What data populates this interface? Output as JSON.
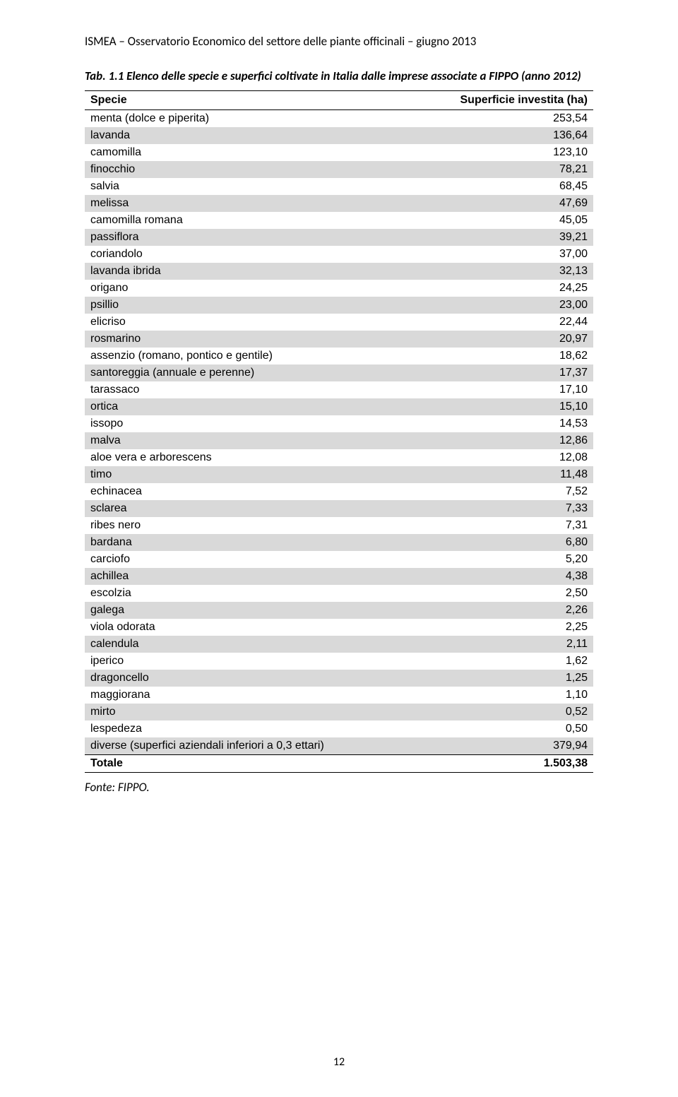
{
  "header": "ISMEA – Osservatorio Economico del settore delle piante officinali – giugno 2013",
  "caption": "Tab. 1.1 Elenco delle specie e superfici coltivate in Italia dalle imprese associate a FIPPO (anno 2012)",
  "table": {
    "col_specie": "Specie",
    "col_value": "Superficie investita (ha)",
    "header_border_color": "#000000",
    "alt_row_color": "#d9d9d9",
    "font_family": "Arial",
    "font_size_pt": 12,
    "rows": [
      {
        "s": "menta (dolce e piperita)",
        "v": "253,54"
      },
      {
        "s": "lavanda",
        "v": "136,64"
      },
      {
        "s": "camomilla",
        "v": "123,10"
      },
      {
        "s": "finocchio",
        "v": "78,21"
      },
      {
        "s": "salvia",
        "v": "68,45"
      },
      {
        "s": "melissa",
        "v": "47,69"
      },
      {
        "s": "camomilla romana",
        "v": "45,05"
      },
      {
        "s": "passiflora",
        "v": "39,21"
      },
      {
        "s": "coriandolo",
        "v": "37,00"
      },
      {
        "s": "lavanda ibrida",
        "v": "32,13"
      },
      {
        "s": "origano",
        "v": "24,25"
      },
      {
        "s": "psillio",
        "v": "23,00"
      },
      {
        "s": "elicriso",
        "v": "22,44"
      },
      {
        "s": "rosmarino",
        "v": "20,97"
      },
      {
        "s": "assenzio (romano, pontico e gentile)",
        "v": "18,62"
      },
      {
        "s": "santoreggia (annuale e perenne)",
        "v": "17,37"
      },
      {
        "s": "tarassaco",
        "v": "17,10"
      },
      {
        "s": "ortica",
        "v": "15,10"
      },
      {
        "s": "issopo",
        "v": "14,53"
      },
      {
        "s": "malva",
        "v": "12,86"
      },
      {
        "s": "aloe vera e arborescens",
        "v": "12,08"
      },
      {
        "s": "timo",
        "v": "11,48"
      },
      {
        "s": "echinacea",
        "v": "7,52"
      },
      {
        "s": "sclarea",
        "v": "7,33"
      },
      {
        "s": "ribes nero",
        "v": "7,31"
      },
      {
        "s": "bardana",
        "v": "6,80"
      },
      {
        "s": "carciofo",
        "v": "5,20"
      },
      {
        "s": "achillea",
        "v": "4,38"
      },
      {
        "s": "escolzia",
        "v": "2,50"
      },
      {
        "s": "galega",
        "v": "2,26"
      },
      {
        "s": "viola odorata",
        "v": "2,25"
      },
      {
        "s": "calendula",
        "v": "2,11"
      },
      {
        "s": "iperico",
        "v": "1,62"
      },
      {
        "s": "dragoncello",
        "v": "1,25"
      },
      {
        "s": "maggiorana",
        "v": "1,10"
      },
      {
        "s": "mirto",
        "v": "0,52"
      },
      {
        "s": "lespedeza",
        "v": "0,50"
      },
      {
        "s": "diverse (superfici aziendali inferiori a 0,3 ettari)",
        "v": "379,94"
      }
    ],
    "total_label": "Totale",
    "total_value": "1.503,38"
  },
  "source": "Fonte: FIPPO.",
  "page_number": "12"
}
